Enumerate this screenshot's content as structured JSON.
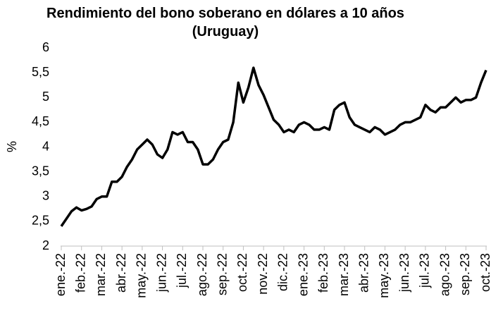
{
  "chart_data": {
    "type": "line",
    "title": "Rendimiento del bono soberano en dólares a 10 años (Uruguay)",
    "ylabel": "%",
    "categories": [
      "ene.-22",
      null,
      null,
      null,
      "feb.-22",
      null,
      null,
      null,
      "mar.-22",
      null,
      null,
      null,
      "abr.-22",
      null,
      null,
      null,
      "may.-22",
      null,
      null,
      null,
      "jun.-22",
      null,
      null,
      null,
      "jul.-22",
      null,
      null,
      null,
      "ago.-22",
      null,
      null,
      null,
      "sep.-22",
      null,
      null,
      null,
      "oct.-22",
      null,
      null,
      null,
      "nov.-22",
      null,
      null,
      null,
      "dic.-22",
      null,
      null,
      null,
      "ene.-23",
      null,
      null,
      null,
      "feb.-23",
      null,
      null,
      null,
      "mar.-23",
      null,
      null,
      null,
      "abr.-23",
      null,
      null,
      null,
      "may.-23",
      null,
      null,
      null,
      "jun.-23",
      null,
      null,
      null,
      "jul.-23",
      null,
      null,
      null,
      "ago.-23",
      null,
      null,
      null,
      "sep.-23",
      null,
      null,
      null,
      "oct.-23"
    ],
    "values": [
      2.4,
      2.55,
      2.7,
      2.78,
      2.72,
      2.75,
      2.8,
      2.95,
      3.0,
      3.0,
      3.3,
      3.3,
      3.4,
      3.6,
      3.75,
      3.95,
      4.05,
      4.15,
      4.05,
      3.85,
      3.78,
      3.95,
      4.3,
      4.25,
      4.3,
      4.1,
      4.1,
      3.95,
      3.65,
      3.65,
      3.75,
      3.95,
      4.1,
      4.15,
      4.5,
      5.3,
      4.9,
      5.2,
      5.6,
      5.25,
      5.05,
      4.8,
      4.55,
      4.45,
      4.3,
      4.35,
      4.3,
      4.45,
      4.5,
      4.45,
      4.35,
      4.35,
      4.4,
      4.35,
      4.75,
      4.85,
      4.9,
      4.6,
      4.45,
      4.4,
      4.35,
      4.3,
      4.4,
      4.35,
      4.25,
      4.3,
      4.35,
      4.45,
      4.5,
      4.5,
      4.55,
      4.6,
      4.85,
      4.75,
      4.7,
      4.8,
      4.8,
      4.9,
      5.0,
      4.9,
      4.95,
      4.95,
      5.0,
      5.3,
      5.55
    ],
    "color": "#000000",
    "ylim": [
      2,
      6
    ],
    "yticks": [
      2,
      {
        "value": 2.5,
        "label": "2,5"
      },
      3,
      {
        "value": 3.5,
        "label": "3,5"
      },
      4,
      {
        "value": 4.5,
        "label": "4,5"
      },
      5,
      {
        "value": 5.5,
        "label": "5,5"
      },
      6
    ],
    "grid": false
  }
}
